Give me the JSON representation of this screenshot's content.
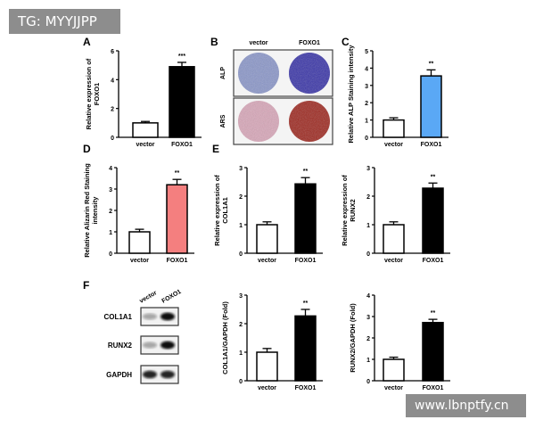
{
  "watermarks": {
    "top_left": "TG: MYYJJPP",
    "bottom_right": "www.lbnptfy.cn"
  },
  "panel_labels": {
    "A": "A",
    "B": "B",
    "C": "C",
    "D": "D",
    "E": "E",
    "F": "F"
  },
  "staining": {
    "columns": [
      "vector",
      "FOXO1"
    ],
    "rows": [
      "ALP",
      "ARS"
    ],
    "colors": {
      "ALP_vector": "#8a96c8",
      "ALP_FOXO1": "#3b36a8",
      "ARS_vector": "#d7a6b8",
      "ARS_FOXO1": "#9e2a22"
    }
  },
  "western_blot": {
    "columns": [
      "vector",
      "FOXO1"
    ],
    "rows": [
      "COL1A1",
      "RUNX2",
      "GAPDH"
    ],
    "band_intensity": [
      [
        0.35,
        1.0
      ],
      [
        0.35,
        1.0
      ],
      [
        0.9,
        0.9
      ]
    ]
  },
  "chart_data": [
    {
      "id": "A",
      "type": "bar",
      "title": "",
      "ylabel": [
        "Relative expression of",
        "FOXO1"
      ],
      "categories": [
        "vector",
        "FOXO1"
      ],
      "values": [
        1.0,
        4.9
      ],
      "errors": [
        0.1,
        0.3
      ],
      "ylim": [
        0,
        6
      ],
      "yticks": [
        0,
        2,
        4,
        6
      ],
      "significance": "***",
      "colors": [
        "#ffffff",
        "#000000"
      ]
    },
    {
      "id": "C",
      "type": "bar",
      "title": "",
      "ylabel": [
        "Relative ALP Staining intensity"
      ],
      "categories": [
        "vector",
        "FOXO1"
      ],
      "values": [
        1.0,
        3.55
      ],
      "errors": [
        0.13,
        0.35
      ],
      "ylim": [
        0,
        5
      ],
      "yticks": [
        0,
        1,
        2,
        3,
        4,
        5
      ],
      "significance": "**",
      "colors": [
        "#ffffff",
        "#5aa8f5"
      ]
    },
    {
      "id": "D",
      "type": "bar",
      "title": "",
      "ylabel": [
        "Relative Alizarin Red Staining",
        "intensity"
      ],
      "categories": [
        "vector",
        "FOXO1"
      ],
      "values": [
        1.0,
        3.2
      ],
      "errors": [
        0.12,
        0.25
      ],
      "ylim": [
        0,
        4
      ],
      "yticks": [
        0,
        1,
        2,
        3,
        4
      ],
      "significance": "**",
      "colors": [
        "#ffffff",
        "#f47f7f"
      ]
    },
    {
      "id": "E1",
      "type": "bar",
      "title": "",
      "ylabel": [
        "Relative expression of",
        "COL1A1"
      ],
      "categories": [
        "vector",
        "FOXO1"
      ],
      "values": [
        1.0,
        2.43
      ],
      "errors": [
        0.1,
        0.22
      ],
      "ylim": [
        0,
        3
      ],
      "yticks": [
        0,
        1,
        2,
        3
      ],
      "significance": "**",
      "colors": [
        "#ffffff",
        "#000000"
      ]
    },
    {
      "id": "E2",
      "type": "bar",
      "title": "",
      "ylabel": [
        "Relative expression of",
        "RUNX2"
      ],
      "categories": [
        "vector",
        "FOXO1"
      ],
      "values": [
        1.0,
        2.28
      ],
      "errors": [
        0.1,
        0.18
      ],
      "ylim": [
        0,
        3
      ],
      "yticks": [
        0,
        1,
        2,
        3
      ],
      "significance": "**",
      "colors": [
        "#ffffff",
        "#000000"
      ]
    },
    {
      "id": "F1",
      "type": "bar",
      "title": "",
      "ylabel": [
        "COL1A1/GAPDH (Fold)"
      ],
      "categories": [
        "vector",
        "FOXO1"
      ],
      "values": [
        1.0,
        2.27
      ],
      "errors": [
        0.13,
        0.23
      ],
      "ylim": [
        0,
        3
      ],
      "yticks": [
        0,
        1,
        2,
        3
      ],
      "significance": "**",
      "colors": [
        "#ffffff",
        "#000000"
      ]
    },
    {
      "id": "F2",
      "type": "bar",
      "title": "",
      "ylabel": [
        "RUNX2/GAPDH (Fold)"
      ],
      "categories": [
        "vector",
        "FOXO1"
      ],
      "values": [
        1.0,
        2.72
      ],
      "errors": [
        0.1,
        0.15
      ],
      "ylim": [
        0,
        4
      ],
      "yticks": [
        0,
        1,
        2,
        3,
        4
      ],
      "significance": "**",
      "colors": [
        "#ffffff",
        "#000000"
      ]
    }
  ]
}
